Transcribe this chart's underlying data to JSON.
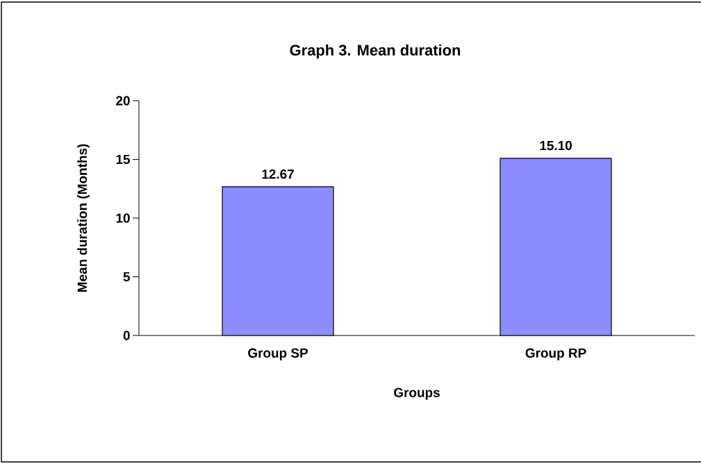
{
  "chart_data": {
    "type": "bar",
    "title": "Graph 3. Mean duration",
    "xlabel": "Groups",
    "ylabel": "Mean duration (Months)",
    "categories": [
      "Group SP",
      "Group RP"
    ],
    "values": [
      12.67,
      15.1
    ],
    "value_labels": [
      "12.67",
      "15.10"
    ],
    "color": "#8c8cff",
    "ylim": [
      0,
      20
    ],
    "yticks": [
      0,
      5,
      10,
      15,
      20
    ],
    "grid": false
  }
}
